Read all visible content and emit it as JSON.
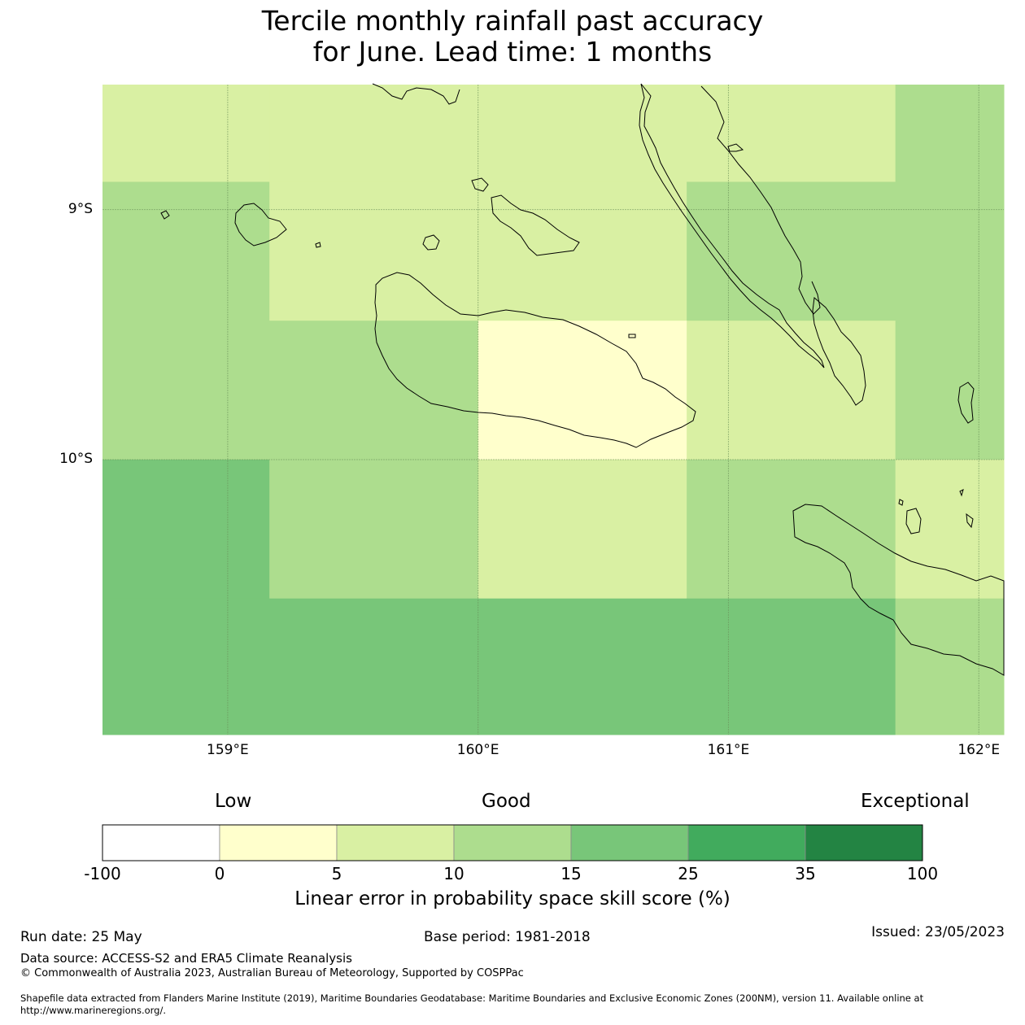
{
  "title": {
    "line1": "Tercile monthly rainfall past accuracy",
    "line2": "for June. Lead time: 1 months"
  },
  "map": {
    "lon_range": [
      158.5,
      162.1
    ],
    "lat_range": [
      -11.1,
      -8.5
    ],
    "lon_ticks": [
      {
        "lon": 159,
        "label": "159°E"
      },
      {
        "lon": 160,
        "label": "160°E"
      },
      {
        "lon": 161,
        "label": "161°E"
      },
      {
        "lon": 162,
        "label": "162°E"
      }
    ],
    "lat_ticks": [
      {
        "lat": -9,
        "label": "9°S"
      },
      {
        "lat": -10,
        "label": "10°S"
      }
    ],
    "cell_lon_edges": [
      158.5,
      159.1667,
      160.0,
      160.8333,
      161.6667,
      162.1
    ],
    "cell_lat_edges": [
      -8.5,
      -8.8889,
      -9.4444,
      -10.0,
      -10.5556,
      -11.1
    ],
    "skill_class_grid": [
      [
        2,
        2,
        2,
        2,
        3
      ],
      [
        3,
        2,
        2,
        3,
        3
      ],
      [
        3,
        3,
        1,
        2,
        3
      ],
      [
        4,
        3,
        2,
        3,
        2
      ],
      [
        4,
        4,
        4,
        4,
        3
      ]
    ],
    "colors": {
      "class_1": "#ffffcc",
      "class_2": "#d9f0a3",
      "class_3": "#addd8e",
      "class_4": "#78c679",
      "coastline": "#000000"
    }
  },
  "colorbar": {
    "category_low": "Low",
    "category_good": "Good",
    "category_exceptional": "Exceptional",
    "boundaries": [
      "-100",
      "0",
      "5",
      "10",
      "15",
      "25",
      "35",
      "100"
    ],
    "colors": [
      "#ffffff",
      "#ffffcc",
      "#d9f0a3",
      "#addd8e",
      "#78c679",
      "#41ab5d",
      "#238443"
    ],
    "label": "Linear error in probability space skill score (%)"
  },
  "footer": {
    "run_date": "Run date: 25 May",
    "base_period": "Base period: 1981-2018",
    "issued": "Issued: 23/05/2023",
    "data_source": "Data source: ACCESS-S2 and ERA5 Climate Reanalysis",
    "copyright": "© Commonwealth of Australia 2023, Australian Bureau of Meteorology, Supported by COSPPac",
    "shapefile_line1": "Shapefile data extracted from Flanders Marine Institute (2019), Maritime Boundaries Geodatabase: Maritime Boundaries and Exclusive Economic Zones (200NM), version 11. Available online at",
    "shapefile_line2": "http://www.marineregions.org/."
  }
}
